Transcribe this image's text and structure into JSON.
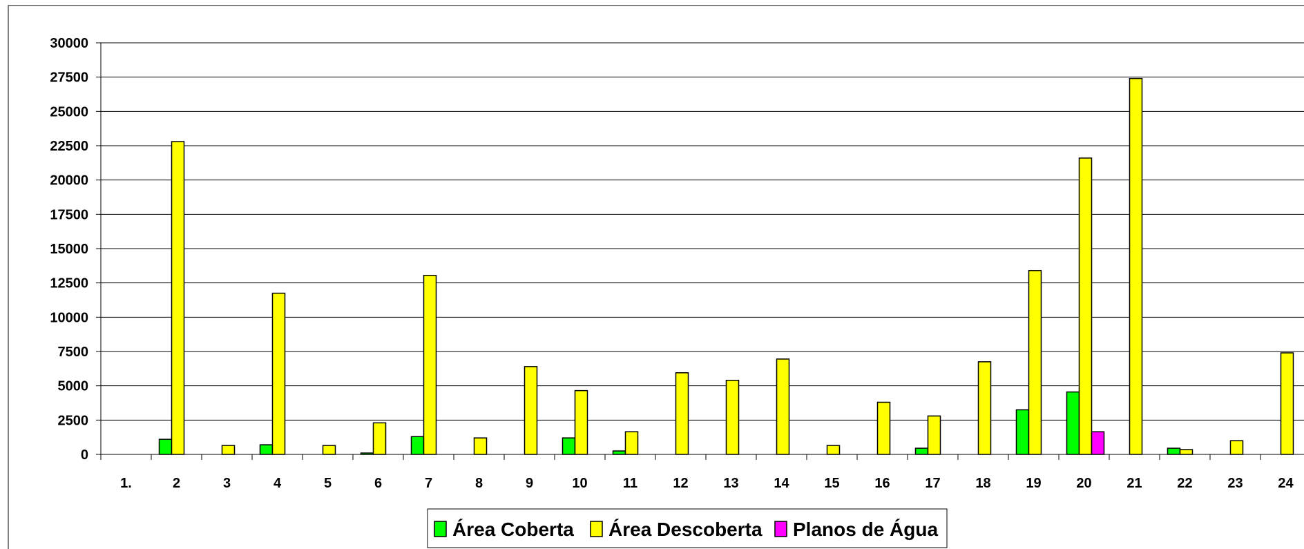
{
  "chart_data": {
    "type": "bar",
    "categories": [
      "1.",
      "2",
      "3",
      "4",
      "5",
      "6",
      "7",
      "8",
      "9",
      "10",
      "11",
      "12",
      "13",
      "14",
      "15",
      "16",
      "17",
      "18",
      "19",
      "20",
      "21",
      "22",
      "23",
      "24"
    ],
    "series": [
      {
        "name": "Área Coberta",
        "color": "#00ff00",
        "values": [
          0,
          1100,
          0,
          700,
          0,
          100,
          1300,
          0,
          0,
          1200,
          250,
          0,
          0,
          0,
          0,
          0,
          450,
          0,
          3250,
          4550,
          0,
          450,
          0,
          0
        ]
      },
      {
        "name": "Área Descoberta",
        "color": "#ffff00",
        "values": [
          0,
          22800,
          650,
          11750,
          650,
          2300,
          13050,
          1200,
          6400,
          4650,
          1650,
          5950,
          5400,
          6950,
          650,
          3800,
          2800,
          6750,
          13400,
          21600,
          27400,
          350,
          1000,
          7400
        ]
      },
      {
        "name": "Planos de Água",
        "color": "#ff00ff",
        "values": [
          0,
          0,
          0,
          0,
          0,
          0,
          0,
          0,
          0,
          0,
          0,
          0,
          0,
          0,
          0,
          0,
          0,
          0,
          0,
          1650,
          0,
          0,
          0,
          0
        ]
      }
    ],
    "yticks": [
      "0",
      "2500",
      "5000",
      "7500",
      "10000",
      "12500",
      "15000",
      "17500",
      "20000",
      "22500",
      "25000",
      "27500",
      "30000"
    ],
    "ylim": [
      0,
      30000
    ],
    "grid": true,
    "legend": "bottom"
  }
}
